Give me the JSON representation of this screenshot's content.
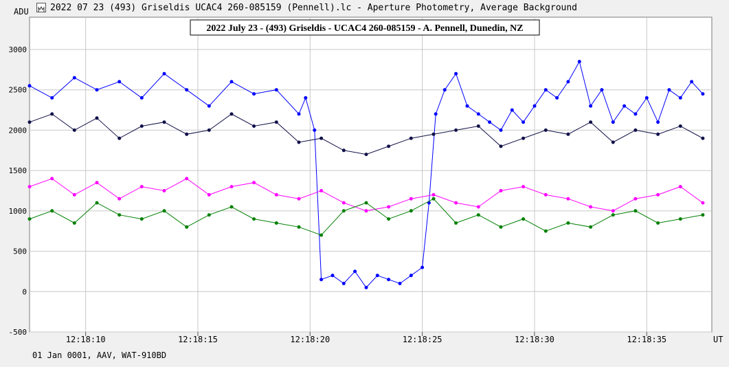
{
  "window": {
    "title": "2022 07 23 (493) Griseldis UCAC4 260-085159 (Pennell).lc - Aperture Photometry, Average Background"
  },
  "footer": {
    "text": "01 Jan 0001, AAV, WAT-910BD"
  },
  "chart_data": {
    "type": "line",
    "title": "2022 July 23 - (493) Griseldis - UCAC4 260-085159 - A. Pennell, Dunedin, NZ",
    "ylabel": "ADU",
    "xlabel": "UT",
    "ylim": [
      -500,
      3400
    ],
    "xlim": [
      7.5,
      37.9
    ],
    "y_ticks": [
      -500,
      0,
      500,
      1000,
      1500,
      2000,
      2500,
      3000
    ],
    "x_tick_values": [
      10,
      15,
      20,
      25,
      30,
      35
    ],
    "x_tick_labels": [
      "12:18:10",
      "12:18:15",
      "12:18:20",
      "12:18:25",
      "12:18:30",
      "12:18:35"
    ],
    "grid": true,
    "series": [
      {
        "color": "#0000ff",
        "x": [
          7.5,
          8.5,
          9.5,
          10.5,
          11.5,
          12.5,
          13.5,
          14.5,
          15.5,
          16.5,
          17.5,
          18.5,
          19.5,
          19.8,
          20.2,
          20.5,
          21,
          21.5,
          22,
          22.5,
          23,
          23.5,
          24,
          24.5,
          25,
          25.3,
          25.6,
          26,
          26.5,
          27,
          27.5,
          28,
          28.5,
          29,
          29.5,
          30,
          30.5,
          31,
          31.5,
          32,
          32.5,
          33,
          33.5,
          34,
          34.5,
          35,
          35.5,
          36,
          36.5,
          37,
          37.5
        ],
        "values": [
          2550,
          2400,
          2650,
          2500,
          2600,
          2400,
          2700,
          2500,
          2300,
          2600,
          2450,
          2500,
          2200,
          2400,
          2000,
          150,
          200,
          100,
          250,
          50,
          200,
          150,
          100,
          200,
          300,
          1100,
          2200,
          2500,
          2700,
          2300,
          2200,
          2100,
          2000,
          2250,
          2100,
          2300,
          2500,
          2400,
          2600,
          2850,
          2300,
          2500,
          2100,
          2300,
          2200,
          2400,
          2100,
          2500,
          2400,
          2600,
          2450
        ]
      },
      {
        "color": "#101048",
        "x": [
          7.5,
          8.5,
          9.5,
          10.5,
          11.5,
          12.5,
          13.5,
          14.5,
          15.5,
          16.5,
          17.5,
          18.5,
          19.5,
          20.5,
          21.5,
          22.5,
          23.5,
          24.5,
          25.5,
          26.5,
          27.5,
          28.5,
          29.5,
          30.5,
          31.5,
          32.5,
          33.5,
          34.5,
          35.5,
          36.5,
          37.5
        ],
        "values": [
          2100,
          2200,
          2000,
          2150,
          1900,
          2050,
          2100,
          1950,
          2000,
          2200,
          2050,
          2100,
          1850,
          1900,
          1750,
          1700,
          1800,
          1900,
          1950,
          2000,
          2050,
          1800,
          1900,
          2000,
          1950,
          2100,
          1850,
          2000,
          1950,
          2050,
          1900
        ]
      },
      {
        "color": "#ff00ff",
        "x": [
          7.5,
          8.5,
          9.5,
          10.5,
          11.5,
          12.5,
          13.5,
          14.5,
          15.5,
          16.5,
          17.5,
          18.5,
          19.5,
          20.5,
          21.5,
          22.5,
          23.5,
          24.5,
          25.5,
          26.5,
          27.5,
          28.5,
          29.5,
          30.5,
          31.5,
          32.5,
          33.5,
          34.5,
          35.5,
          36.5,
          37.5
        ],
        "values": [
          1300,
          1400,
          1200,
          1350,
          1150,
          1300,
          1250,
          1400,
          1200,
          1300,
          1350,
          1200,
          1150,
          1250,
          1100,
          1000,
          1050,
          1150,
          1200,
          1100,
          1050,
          1250,
          1300,
          1200,
          1150,
          1050,
          1000,
          1150,
          1200,
          1300,
          1100
        ]
      },
      {
        "color": "#008000",
        "x": [
          7.5,
          8.5,
          9.5,
          10.5,
          11.5,
          12.5,
          13.5,
          14.5,
          15.5,
          16.5,
          17.5,
          18.5,
          19.5,
          20.5,
          21.5,
          22.5,
          23.5,
          24.5,
          25.5,
          26.5,
          27.5,
          28.5,
          29.5,
          30.5,
          31.5,
          32.5,
          33.5,
          34.5,
          35.5,
          36.5,
          37.5
        ],
        "values": [
          900,
          1000,
          850,
          1100,
          950,
          900,
          1000,
          800,
          950,
          1050,
          900,
          850,
          800,
          700,
          1000,
          1100,
          900,
          1000,
          1150,
          850,
          950,
          800,
          900,
          750,
          850,
          800,
          950,
          1000,
          850,
          900,
          950
        ]
      }
    ]
  }
}
